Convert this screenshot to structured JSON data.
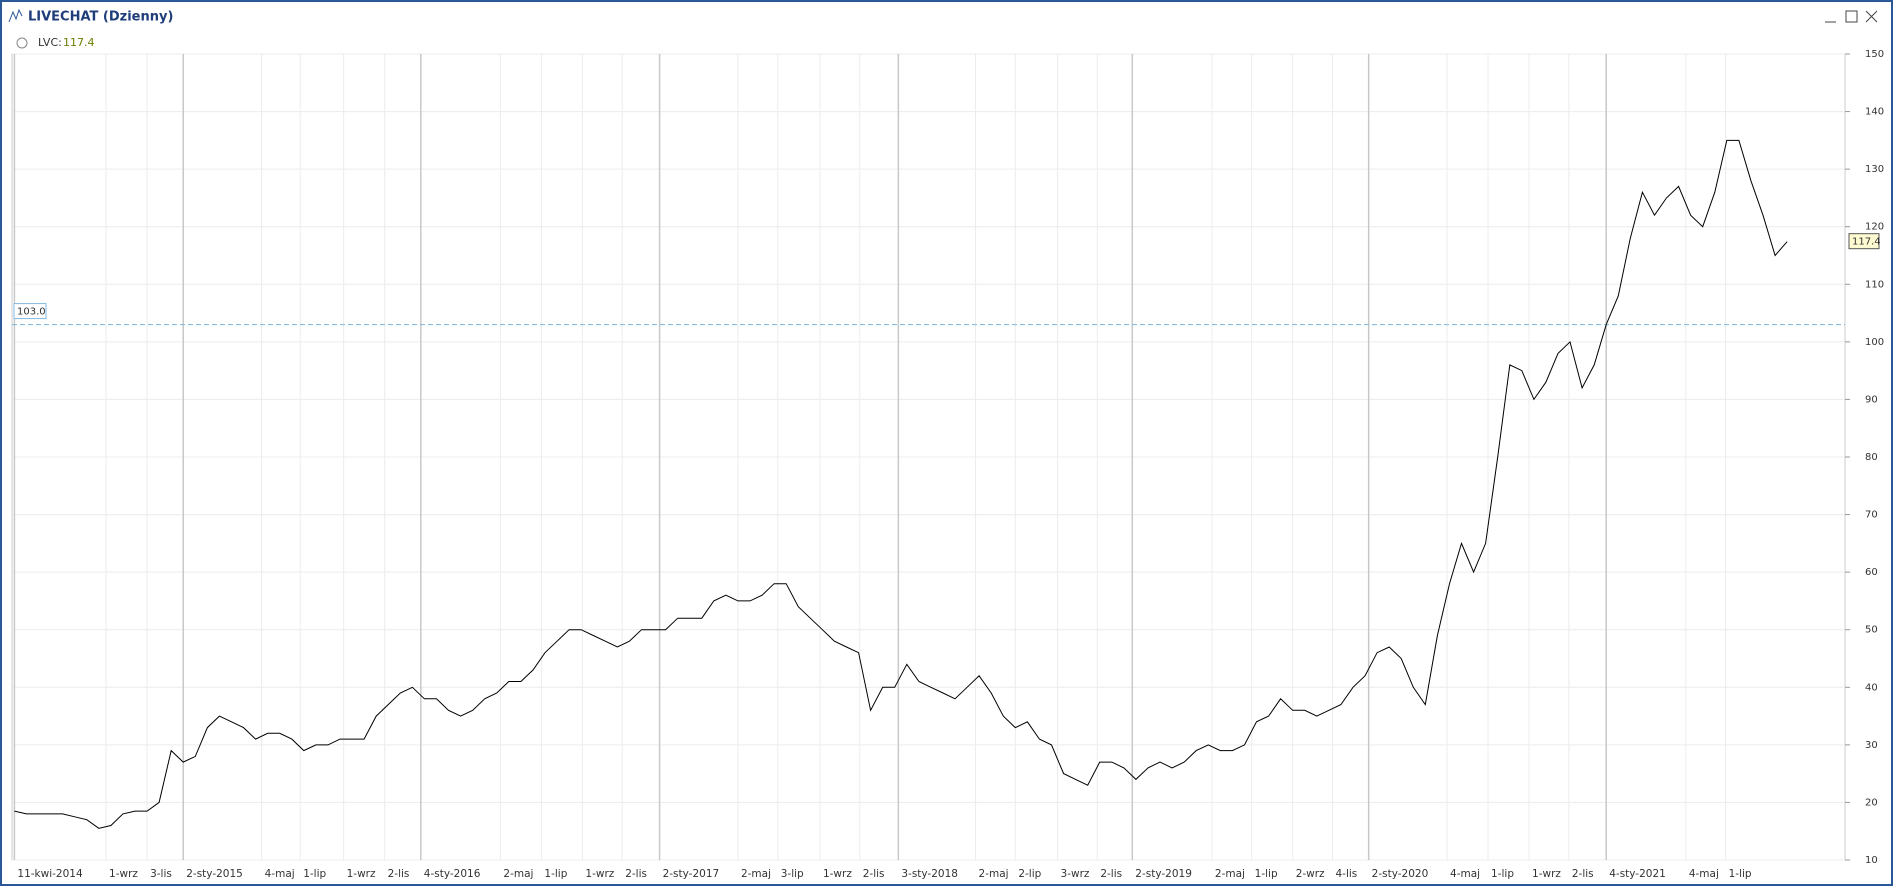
{
  "chart_data": {
    "type": "line",
    "title": "LIVECHAT (Dzienny)",
    "series": [
      {
        "name": "LVC:",
        "color": "#000000",
        "values": [
          18.5,
          18,
          18,
          18,
          18,
          17.5,
          17,
          15.5,
          16,
          18,
          18.5,
          18.5,
          20,
          29,
          27,
          28,
          33,
          35,
          34,
          33,
          31,
          32,
          32,
          31,
          29,
          30,
          30,
          31,
          31,
          31,
          35,
          37,
          39,
          40,
          38,
          38,
          36,
          35,
          36,
          38,
          39,
          41,
          41,
          43,
          46,
          48,
          50,
          50,
          49,
          48,
          47,
          48,
          50,
          50,
          50,
          52,
          52,
          52,
          55,
          56,
          55,
          55,
          56,
          58,
          58,
          54,
          52,
          50,
          48,
          47,
          46,
          36,
          40,
          40,
          44,
          41,
          40,
          39,
          38,
          40,
          42,
          39,
          35,
          33,
          34,
          31,
          30,
          25,
          24,
          23,
          27,
          27,
          26,
          24,
          26,
          27,
          26,
          27,
          29,
          30,
          29,
          29,
          30,
          34,
          35,
          38,
          36,
          36,
          35,
          36,
          37,
          40,
          42,
          46,
          47,
          45,
          40,
          37,
          49,
          58,
          65,
          60,
          65,
          80,
          96,
          95,
          90,
          93,
          98,
          100,
          92,
          96,
          103,
          108,
          118,
          126,
          122,
          125,
          127,
          122,
          120,
          126,
          135,
          135,
          128,
          122,
          115,
          117.4
        ]
      }
    ],
    "xlim": [
      -0.2,
      151.8
    ],
    "xticks": [
      {
        "value": 0,
        "label": "11-kwi-2014"
      },
      {
        "value": 7.6,
        "label": "1-wrz"
      },
      {
        "value": 11,
        "label": "3-lis"
      },
      {
        "value": 14,
        "label": "2-sty-2015"
      },
      {
        "value": 20.5,
        "label": "4-maj"
      },
      {
        "value": 23.7,
        "label": "1-lip"
      },
      {
        "value": 27.3,
        "label": "1-wrz"
      },
      {
        "value": 30.7,
        "label": "2-lis"
      },
      {
        "value": 33.7,
        "label": "4-sty-2016"
      },
      {
        "value": 40.3,
        "label": "2-maj"
      },
      {
        "value": 43.7,
        "label": "1-lip"
      },
      {
        "value": 47.1,
        "label": "1-wrz"
      },
      {
        "value": 50.4,
        "label": "2-lis"
      },
      {
        "value": 53.5,
        "label": "2-sty-2017"
      },
      {
        "value": 60,
        "label": "2-maj"
      },
      {
        "value": 63.3,
        "label": "3-lip"
      },
      {
        "value": 66.8,
        "label": "1-wrz"
      },
      {
        "value": 70.1,
        "label": "2-lis"
      },
      {
        "value": 73.3,
        "label": "3-sty-2018"
      },
      {
        "value": 79.7,
        "label": "2-maj"
      },
      {
        "value": 83,
        "label": "2-lip"
      },
      {
        "value": 86.5,
        "label": "3-wrz"
      },
      {
        "value": 89.8,
        "label": "2-lis"
      },
      {
        "value": 92.7,
        "label": "2-sty-2019"
      },
      {
        "value": 99.3,
        "label": "2-maj"
      },
      {
        "value": 102.6,
        "label": "1-lip"
      },
      {
        "value": 106,
        "label": "2-wrz"
      },
      {
        "value": 109.3,
        "label": "4-lis"
      },
      {
        "value": 112.3,
        "label": "2-sty-2020"
      },
      {
        "value": 118.8,
        "label": "4-maj"
      },
      {
        "value": 122.2,
        "label": "1-lip"
      },
      {
        "value": 125.6,
        "label": "1-wrz"
      },
      {
        "value": 128.9,
        "label": "2-lis"
      },
      {
        "value": 132,
        "label": "4-sty-2021"
      },
      {
        "value": 138.6,
        "label": "4-maj"
      },
      {
        "value": 141.9,
        "label": "1-lip"
      }
    ],
    "ylim": [
      10,
      150
    ],
    "yticks": [
      10,
      20,
      30,
      40,
      50,
      60,
      70,
      80,
      90,
      100,
      110,
      120,
      130,
      140,
      150
    ],
    "hline": {
      "value": 103,
      "label": "103.0",
      "color": "#7fb8e0"
    },
    "grid": true
  }
}
